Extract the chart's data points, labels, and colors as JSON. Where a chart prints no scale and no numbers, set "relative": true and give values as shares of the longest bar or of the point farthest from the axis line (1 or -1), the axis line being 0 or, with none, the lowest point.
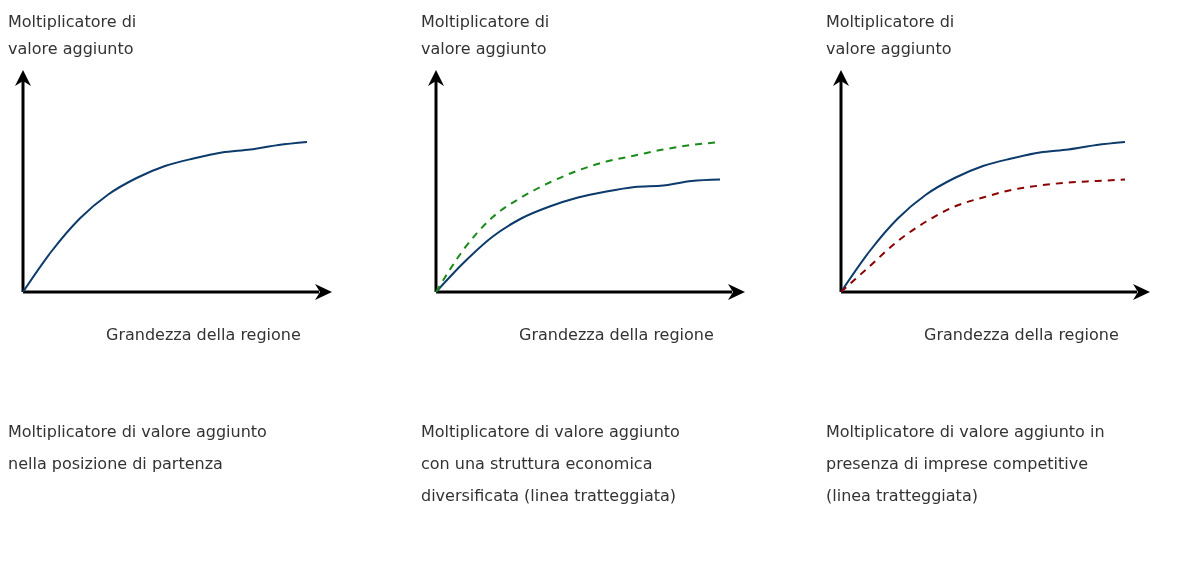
{
  "chart_data": [
    {
      "type": "line",
      "relative": true,
      "ylabel": "Moltiplicatore di valore aggiunto",
      "xlabel": "Grandezza della regione",
      "categories": [
        null,
        null,
        null,
        null,
        null,
        null,
        null,
        null,
        null,
        null,
        null
      ],
      "series": [
        {
          "color": "#0b3a6b",
          "line_style": "solid",
          "values": [
            0,
            0.27,
            0.49,
            0.65,
            0.76,
            0.84,
            0.89,
            0.93,
            0.95,
            0.98,
            1
          ]
        }
      ],
      "annotations": [
        "Moltiplicatore di valore aggiunto nella posizione di partenza"
      ]
    },
    {
      "type": "line",
      "relative": true,
      "ylabel": "Moltiplicatore di valore aggiunto",
      "xlabel": "Grandezza della regione",
      "categories": [
        null,
        null,
        null,
        null,
        null,
        null,
        null,
        null,
        null,
        null,
        null
      ],
      "series": [
        {
          "color": "#0b3a6b",
          "line_style": "solid",
          "values": [
            0,
            0.2,
            0.37,
            0.49,
            0.57,
            0.63,
            0.67,
            0.7,
            0.71,
            0.74,
            0.75
          ]
        },
        {
          "color": "#1a8a1a",
          "line_style": "dashed",
          "values": [
            0,
            0.29,
            0.5,
            0.63,
            0.73,
            0.81,
            0.87,
            0.91,
            0.95,
            0.98,
            1
          ]
        }
      ],
      "annotations": [
        "Moltiplicatore di valore aggiunto con una struttura economica diversificata (linea tratteggiata)"
      ]
    },
    {
      "type": "line",
      "relative": true,
      "ylabel": "Moltiplicatore di valore aggiunto",
      "xlabel": "Grandezza della regione",
      "categories": [
        null,
        null,
        null,
        null,
        null,
        null,
        null,
        null,
        null,
        null,
        null
      ],
      "series": [
        {
          "color": "#0b3a6b",
          "line_style": "solid",
          "values": [
            0,
            0.27,
            0.49,
            0.65,
            0.76,
            0.84,
            0.89,
            0.93,
            0.95,
            0.98,
            1
          ]
        },
        {
          "color": "#8b0000",
          "line_style": "dashed",
          "values": [
            0,
            0.17,
            0.34,
            0.47,
            0.57,
            0.63,
            0.68,
            0.71,
            0.73,
            0.74,
            0.75
          ]
        }
      ],
      "annotations": [
        "Moltiplicatore di valore aggiunto in presenza di imprese competitive (linea tratteggiata)"
      ]
    }
  ]
}
